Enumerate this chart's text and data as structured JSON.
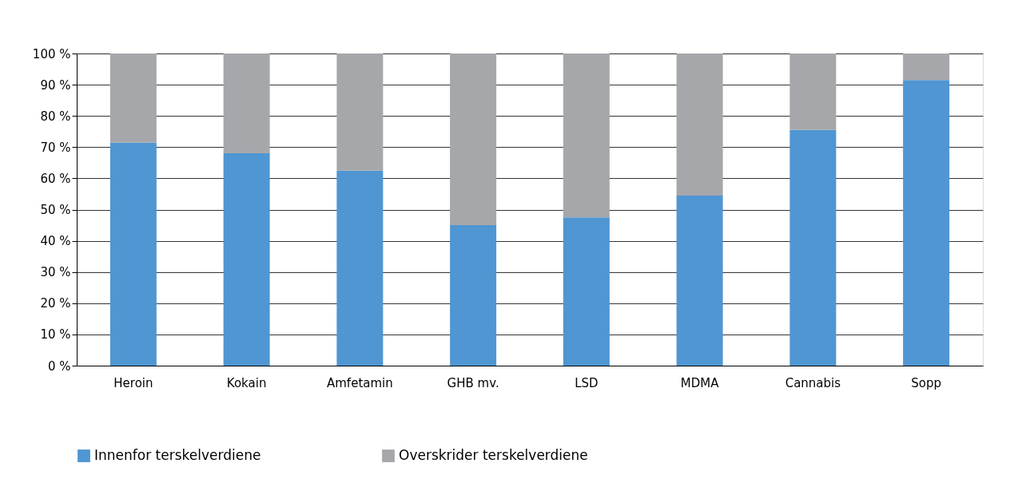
{
  "chart_data": {
    "type": "bar",
    "stacked": true,
    "categories": [
      "Heroin",
      "Kokain",
      "Amfetamin",
      "GHB mv.",
      "LSD",
      "MDMA",
      "Cannabis",
      "Sopp"
    ],
    "series": [
      {
        "name": "Innenfor terskelverdiene",
        "color": "#4f96d2",
        "values": [
          71.5,
          68,
          62.5,
          45,
          47.5,
          54.5,
          75.5,
          91.5
        ]
      },
      {
        "name": "Overskrider terskelverdiene",
        "color": "#a6a7ab",
        "values": [
          28.5,
          32,
          37.5,
          55,
          52.5,
          45.5,
          24.5,
          8.5
        ]
      }
    ],
    "ylim": [
      0,
      100
    ],
    "yticks": [
      {
        "value": 0,
        "label": "0 %"
      },
      {
        "value": 10,
        "label": "10 %"
      },
      {
        "value": 20,
        "label": "20 %"
      },
      {
        "value": 30,
        "label": "30 %"
      },
      {
        "value": 40,
        "label": "40 %"
      },
      {
        "value": 50,
        "label": "50 %"
      },
      {
        "value": 60,
        "label": "60 %"
      },
      {
        "value": 70,
        "label": "70 %"
      },
      {
        "value": 80,
        "label": "80 %"
      },
      {
        "value": 90,
        "label": "90 %"
      },
      {
        "value": 100,
        "label": "100 %"
      }
    ],
    "grid": "y",
    "legend": "bottom"
  }
}
